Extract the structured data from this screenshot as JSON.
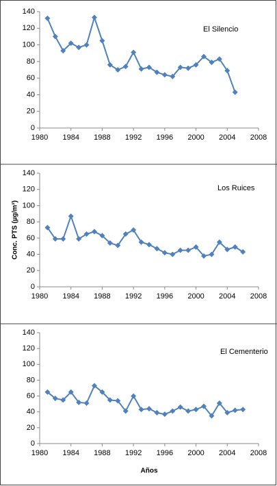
{
  "chart_data": [
    {
      "type": "line",
      "title": "El Silencio",
      "x": [
        1981,
        1982,
        1983,
        1984,
        1985,
        1986,
        1987,
        1988,
        1989,
        1990,
        1991,
        1992,
        1993,
        1994,
        1995,
        1996,
        1997,
        1998,
        1999,
        2000,
        2001,
        2002,
        2003,
        2004,
        2005
      ],
      "values": [
        132,
        110,
        93,
        102,
        97,
        100,
        133,
        105,
        76,
        70,
        74,
        91,
        71,
        73,
        67,
        64,
        62,
        73,
        72,
        76,
        86,
        79,
        83,
        69,
        43
      ],
      "color": "#4f81bd",
      "xlim": [
        1980,
        2008
      ],
      "xticks": [
        1980,
        1984,
        1988,
        1992,
        1996,
        2000,
        2004,
        2008
      ],
      "ylim": [
        0,
        140
      ],
      "yticks": [
        0,
        20,
        40,
        60,
        80,
        100,
        120,
        140
      ]
    },
    {
      "type": "line",
      "title": "Los Ruices",
      "ylabel": "Conc. PTS (µg/m³)",
      "x": [
        1981,
        1982,
        1983,
        1984,
        1985,
        1986,
        1987,
        1988,
        1989,
        1990,
        1991,
        1992,
        1993,
        1994,
        1995,
        1996,
        1997,
        1998,
        1999,
        2000,
        2001,
        2002,
        2003,
        2004,
        2005,
        2006
      ],
      "values": [
        73,
        59,
        59,
        87,
        59,
        65,
        68,
        63,
        54,
        51,
        65,
        70,
        55,
        52,
        47,
        42,
        40,
        45,
        45,
        49,
        38,
        40,
        55,
        46,
        49,
        43
      ],
      "color": "#4f81bd",
      "xlim": [
        1980,
        2008
      ],
      "xticks": [
        1980,
        1984,
        1988,
        1992,
        1996,
        2000,
        2004,
        2008
      ],
      "ylim": [
        0,
        140
      ],
      "yticks": [
        0,
        20,
        40,
        60,
        80,
        100,
        120,
        140
      ]
    },
    {
      "type": "line",
      "title": "El Cementerio",
      "xlabel": "Años",
      "x": [
        1981,
        1982,
        1983,
        1984,
        1985,
        1986,
        1987,
        1988,
        1989,
        1990,
        1991,
        1992,
        1993,
        1994,
        1995,
        1996,
        1997,
        1998,
        1999,
        2000,
        2001,
        2002,
        2003,
        2004,
        2005,
        2006
      ],
      "values": [
        65,
        57,
        55,
        65,
        52,
        51,
        73,
        65,
        55,
        54,
        41,
        60,
        43,
        44,
        39,
        37,
        41,
        46,
        41,
        43,
        47,
        35,
        51,
        39,
        42,
        43
      ],
      "color": "#4f81bd",
      "xlim": [
        1980,
        2008
      ],
      "xticks": [
        1980,
        1984,
        1988,
        1992,
        1996,
        2000,
        2004,
        2008
      ],
      "ylim": [
        0,
        140
      ],
      "yticks": [
        0,
        20,
        40,
        60,
        80,
        100,
        120,
        140
      ]
    }
  ]
}
